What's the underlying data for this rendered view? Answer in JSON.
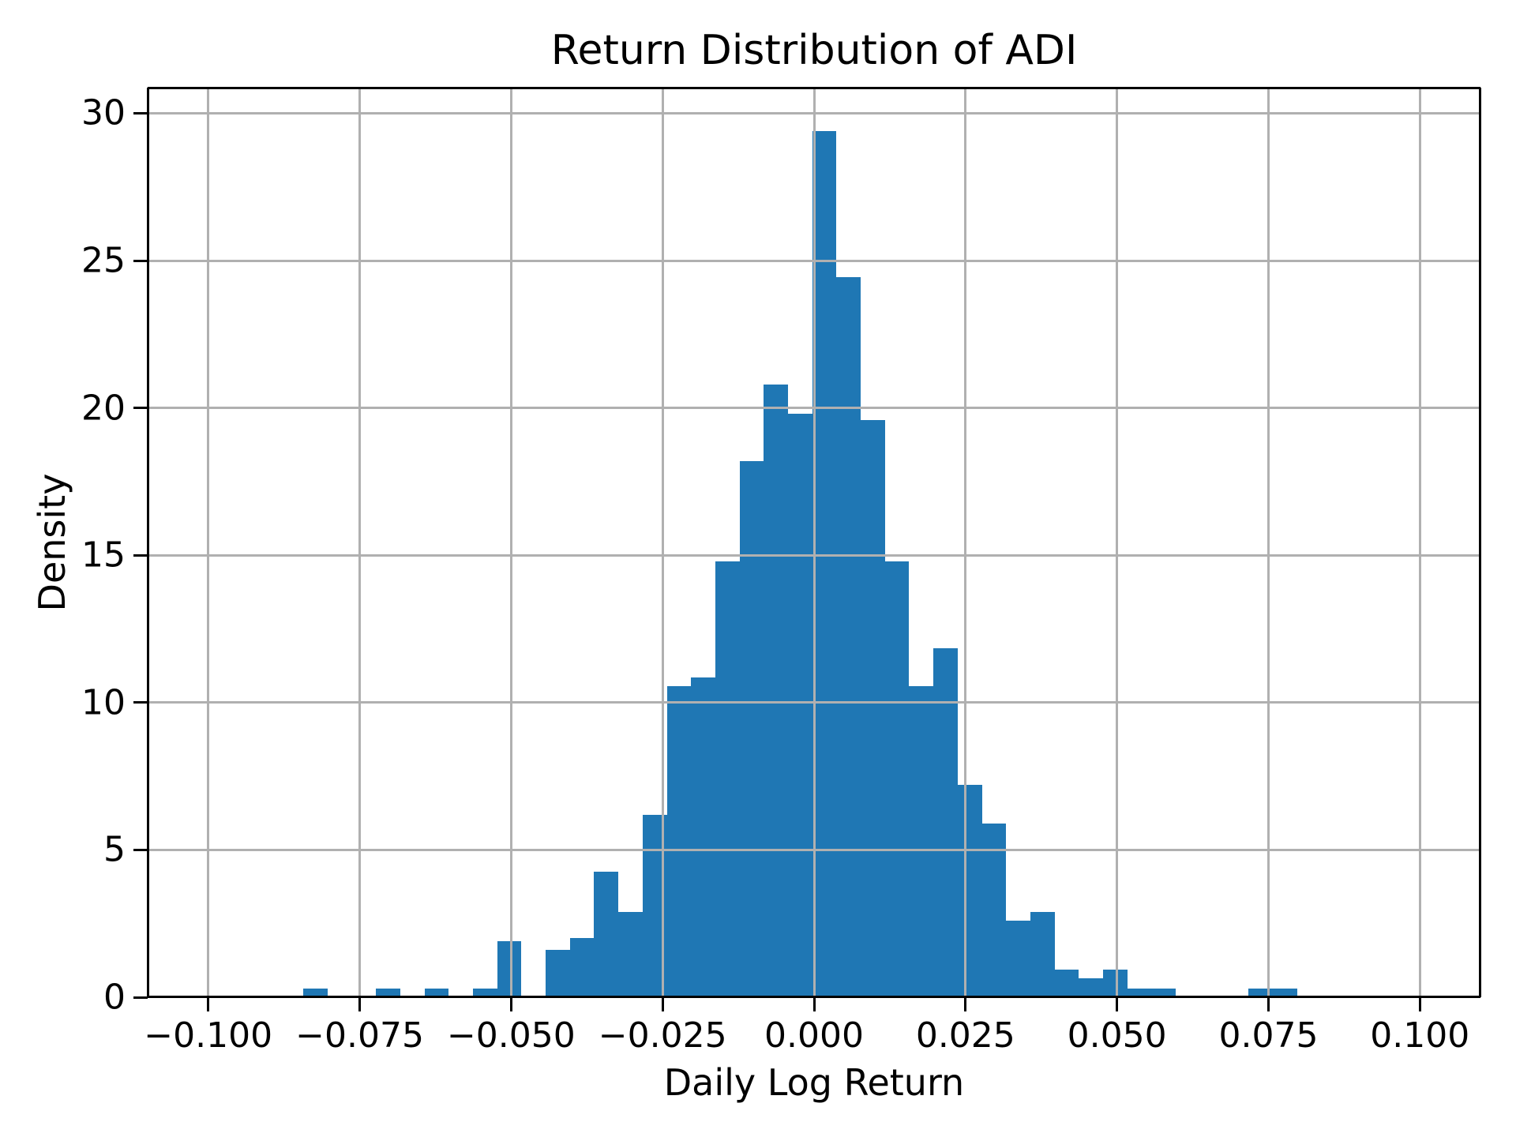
{
  "figure": {
    "title": "Return Distribution of ADI",
    "xlabel": "Daily Log Return",
    "ylabel": "Density"
  },
  "chart_data": {
    "type": "bar",
    "subtype": "histogram",
    "title": "Return Distribution of ADI",
    "xlabel": "Daily Log Return",
    "ylabel": "Density",
    "bar_color": "#1f77b4",
    "grid_color": "#b0b0b0",
    "spine_color": "#000000",
    "grid": true,
    "legend": false,
    "xlim": [
      -0.11,
      0.11
    ],
    "ylim": [
      0,
      30.87
    ],
    "x_tick_values": [
      -0.1,
      -0.075,
      -0.05,
      -0.025,
      0.0,
      0.025,
      0.05,
      0.075,
      0.1
    ],
    "x_tick_labels": [
      "−0.100",
      "−0.075",
      "−0.050",
      "−0.025",
      "0.000",
      "0.025",
      "0.050",
      "0.075",
      "0.100"
    ],
    "y_tick_values": [
      0,
      5,
      10,
      15,
      20,
      25,
      30
    ],
    "y_tick_labels": [
      "0",
      "5",
      "10",
      "15",
      "20",
      "25",
      "30"
    ],
    "bin_start": -0.0843,
    "bin_width": 0.004,
    "densities": [
      0.3,
      0,
      0,
      0.3,
      0,
      0.3,
      0,
      0.3,
      1.9,
      0,
      1.6,
      2.0,
      4.25,
      2.9,
      6.2,
      10.55,
      10.85,
      14.8,
      18.2,
      20.8,
      19.8,
      29.4,
      24.45,
      19.6,
      14.8,
      10.55,
      11.85,
      7.2,
      5.9,
      2.6,
      2.9,
      0.95,
      0.65,
      0.95,
      0.3,
      0.3,
      0,
      0,
      0,
      0.3,
      0.3
    ]
  }
}
